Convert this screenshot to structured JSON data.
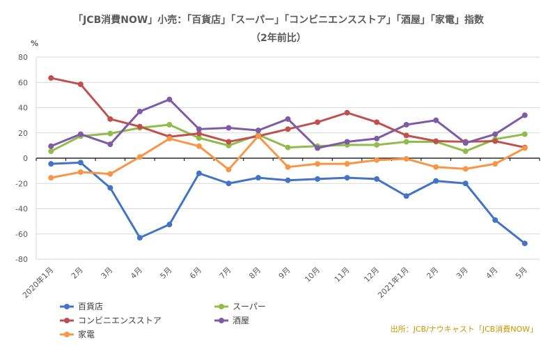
{
  "chart_data": {
    "type": "line",
    "title": "「JCB消費NOW」小売：「百貨店」「スーパー」「コンビニエンスストア」「酒屋」「家電」指数",
    "subtitle": "（2年前比）",
    "ylabel": "%",
    "ylim": [
      -80,
      80
    ],
    "yticks": [
      80,
      60,
      40,
      20,
      0,
      -20,
      -40,
      -60,
      -80
    ],
    "grid": true,
    "legend": "bottom",
    "categories": [
      "2020年1月",
      "2月",
      "3月",
      "4月",
      "5月",
      "6月",
      "7月",
      "8月",
      "9月",
      "10月",
      "11月",
      "12月",
      "2021年1月",
      "2月",
      "3月",
      "4月",
      "5月"
    ],
    "series": [
      {
        "name": "百貨店",
        "color": "#4472c4",
        "values": [
          -4.5,
          -3.5,
          -23.5,
          -63,
          -52.5,
          -12,
          -20,
          -15.5,
          -17.5,
          -16.5,
          -15.5,
          -16.5,
          -30,
          -18,
          -20,
          -49,
          -67.5
        ]
      },
      {
        "name": "スーパー",
        "color": "#8fbc4a",
        "values": [
          5.5,
          17.5,
          19.5,
          24,
          26.5,
          16,
          10,
          18.5,
          8.5,
          9.5,
          10.5,
          10.5,
          13,
          13,
          5.5,
          15,
          19
        ]
      },
      {
        "name": "コンビニエンスストア",
        "color": "#c0504d",
        "values": [
          63.5,
          58.5,
          31,
          25,
          17,
          19.5,
          13,
          17.5,
          23,
          28.5,
          36,
          28.5,
          18,
          13.5,
          13,
          13.5,
          8.5
        ]
      },
      {
        "name": "酒屋",
        "color": "#7e5ba6",
        "values": [
          9.5,
          19,
          11,
          37,
          46.5,
          23,
          24,
          22,
          31,
          8,
          13,
          15.5,
          26.5,
          30,
          12,
          19,
          34
        ]
      },
      {
        "name": "家電",
        "color": "#f79646",
        "values": [
          -15.5,
          -11,
          -12.5,
          1,
          15.5,
          9.5,
          -9,
          17.5,
          -7,
          -4.5,
          -4.5,
          -1.5,
          -0.5,
          -7,
          -8.5,
          -4.5,
          8
        ]
      }
    ],
    "source": "出所：JCB/ナウキャスト「JCB消費NOW」"
  }
}
